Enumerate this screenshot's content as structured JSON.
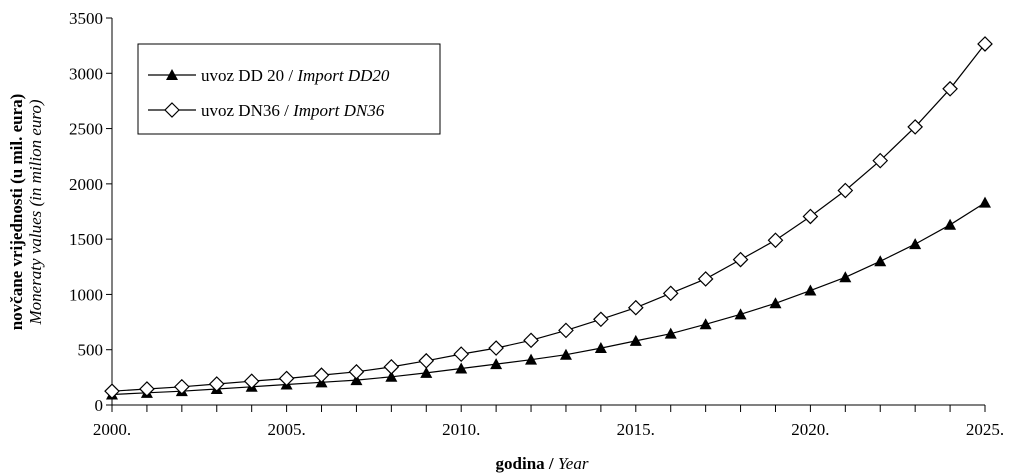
{
  "chart_data": {
    "type": "line",
    "title": "",
    "xlabel_bold": "godina",
    "xlabel_sep": " / ",
    "xlabel_italic": "Year",
    "ylabel_bold": "novčane vrijednosti (u mil. eura)",
    "ylabel_italic": "Moneraty values (in milion euro)",
    "ylim": [
      0,
      3500
    ],
    "yticks": [
      "0",
      "500",
      "1000",
      "1500",
      "2000",
      "2500",
      "3000",
      "3500"
    ],
    "xlim": [
      2000,
      2025
    ],
    "xticks": [
      "2000.",
      "2005.",
      "2010.",
      "2015.",
      "2020.",
      "2025."
    ],
    "x": [
      2000,
      2001,
      2002,
      2003,
      2004,
      2005,
      2006,
      2007,
      2008,
      2009,
      2010,
      2011,
      2012,
      2013,
      2014,
      2015,
      2016,
      2017,
      2018,
      2019,
      2020,
      2021,
      2022,
      2023,
      2024,
      2025
    ],
    "grid": false,
    "legend_position": "top-left",
    "series": [
      {
        "name_plain": "uvoz DD 20 / ",
        "name_italic": "Import DD20",
        "marker": "filled-triangle",
        "values": [
          95,
          110,
          125,
          145,
          165,
          185,
          205,
          225,
          255,
          290,
          330,
          370,
          410,
          455,
          515,
          580,
          645,
          730,
          820,
          920,
          1035,
          1155,
          1300,
          1455,
          1630,
          1830
        ]
      },
      {
        "name_plain": "uvoz DN36 / ",
        "name_italic": "Import DN36",
        "marker": "open-diamond",
        "values": [
          125,
          145,
          165,
          190,
          215,
          240,
          270,
          300,
          345,
          400,
          460,
          515,
          585,
          675,
          775,
          880,
          1010,
          1140,
          1315,
          1490,
          1705,
          1940,
          2210,
          2515,
          2860,
          3265
        ]
      }
    ]
  }
}
